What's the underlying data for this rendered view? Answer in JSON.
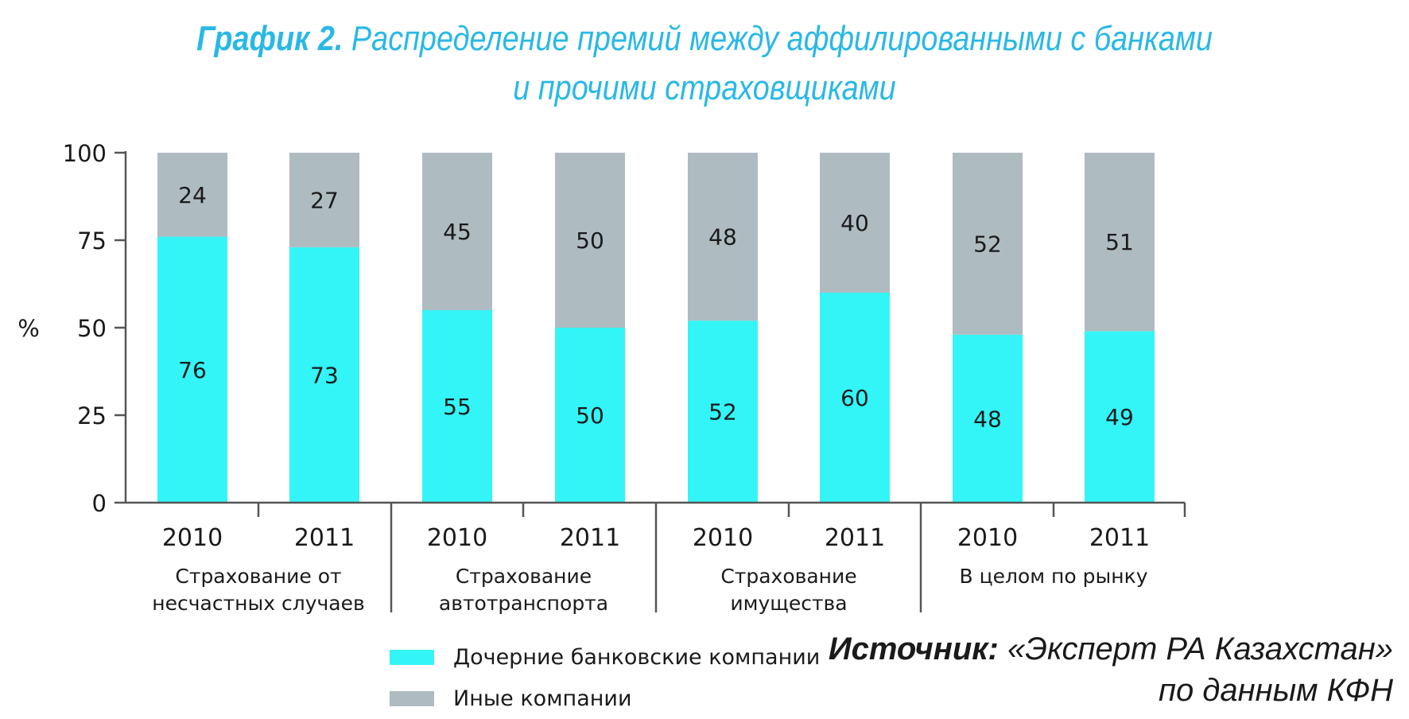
{
  "title": {
    "lead": "График 2.",
    "line1": "Распределение премий между аффилированными с банками",
    "line2": "и прочими страховщиками"
  },
  "chart_data": {
    "type": "bar",
    "stacked": true,
    "ylabel": "%",
    "ylim": [
      0,
      100
    ],
    "yticks": [
      0,
      25,
      50,
      75,
      100
    ],
    "groups": [
      {
        "label_lines": [
          "Страхование от",
          "несчастных случаев"
        ],
        "categories": [
          "2010",
          "2011"
        ]
      },
      {
        "label_lines": [
          "Страхование",
          "автотранспорта"
        ],
        "categories": [
          "2010",
          "2011"
        ]
      },
      {
        "label_lines": [
          "Страхование",
          "имущества"
        ],
        "categories": [
          "2010",
          "2011"
        ]
      },
      {
        "label_lines": [
          "В целом по рынку"
        ],
        "categories": [
          "2010",
          "2011"
        ]
      }
    ],
    "series": [
      {
        "name": "Дочерние банковские компании",
        "color": "#33f4f7",
        "values": [
          76,
          73,
          55,
          50,
          52,
          60,
          48,
          49
        ]
      },
      {
        "name": "Иные компании",
        "color": "#aebbc1",
        "values": [
          24,
          27,
          45,
          50,
          48,
          40,
          52,
          51
        ]
      }
    ],
    "grid": false,
    "legend_placement": "bottom"
  },
  "source": {
    "lead": "Источник:",
    "line1": "«Эксперт РА Казахстан»",
    "line2": "по данным КФН"
  }
}
